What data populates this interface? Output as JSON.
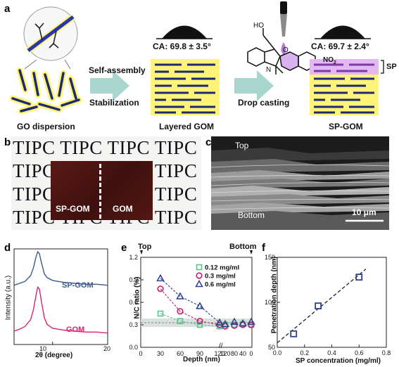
{
  "panels": {
    "a": "a",
    "b": "b",
    "c": "c",
    "d": "d",
    "e": "e",
    "f": "f"
  },
  "panel_a": {
    "labels": {
      "self_assembly": "Self-assembly",
      "stabilization": "Stabilization",
      "drop_casting": "Drop casting",
      "go_dispersion": "GO dispersion",
      "layered_gom": "Layered GOM",
      "sp_gom": "SP-GOM",
      "ca_gom": "CA: 69.8 ± 3.5°",
      "ca_spgom": "CA: 69.7 ± 2.4°",
      "sp": "SP",
      "ho": "HO",
      "n": "N",
      "o": "O",
      "no2": "NO",
      "no2_sub": "2"
    },
    "colors": {
      "sheet": "#1c2a6e",
      "glow": "#fff37a",
      "sp_layer": "#c084e0",
      "arrow": "#a9d5cf",
      "molecule_drop": "#b37ad8"
    }
  },
  "panel_b": {
    "tipc_rows": [
      "TIPC TIPC TIPC TIPC",
      "TIPC TIPC TIPC TIPC",
      "TIPC TIPC TIPC TIPC",
      "TIPC TIPC TIPC TIPC"
    ],
    "left_label": "SP-GOM",
    "right_label": "GOM"
  },
  "panel_c": {
    "top": "Top",
    "bottom": "Bottom",
    "scale": "10 μm"
  },
  "panel_d": {
    "ylabel": "Intensity (a.u.)",
    "xlabel": "2θ (degree)",
    "xticks": [
      "10",
      "20"
    ],
    "series": [
      {
        "name": "SP-GOM",
        "color": "#3b5b8c"
      },
      {
        "name": "GOM",
        "color": "#d6266f"
      }
    ]
  },
  "panel_e": {
    "top": "Top",
    "bottom": "Bottom",
    "ylabel": "N/C ratio (%)",
    "xlabel": "Depth (nm)",
    "yticks": [
      "0.0",
      "0.3",
      "0.6",
      "0.9",
      "1.2"
    ],
    "xticks_left": [
      "0",
      "30",
      "60",
      "90",
      "120"
    ],
    "xticks_right": [
      "120",
      "80",
      "40",
      "0"
    ],
    "legend": [
      {
        "name": "0.12 mg/ml",
        "color": "#57c48a",
        "marker": "square"
      },
      {
        "name": "0.3 mg/ml",
        "color": "#c41a6f",
        "marker": "circle"
      },
      {
        "name": "0.6 mg/ml",
        "color": "#2c3e8c",
        "marker": "triangle"
      }
    ]
  },
  "panel_f": {
    "ylabel": "Penetration depth (nm)",
    "xlabel": "SP concentration (mg/ml)",
    "yticks": [
      "50",
      "100",
      "150"
    ],
    "xticks": [
      "0.0",
      "0.2",
      "0.4",
      "0.6",
      "0.8"
    ]
  },
  "chart_data": [
    {
      "type": "line",
      "panel": "d",
      "xlabel": "2θ (degree)",
      "ylabel": "Intensity (a.u.)",
      "xlim": [
        3,
        20
      ],
      "series": [
        {
          "name": "SP-GOM",
          "x": [
            3,
            4,
            5,
            6,
            6.5,
            7,
            7.3,
            7.6,
            8,
            8.5,
            9,
            10,
            12,
            14,
            16,
            18,
            20
          ],
          "y": [
            0.62,
            0.64,
            0.66,
            0.72,
            0.8,
            0.92,
            0.97,
            0.95,
            0.85,
            0.74,
            0.7,
            0.67,
            0.65,
            0.64,
            0.63,
            0.63,
            0.62
          ]
        },
        {
          "name": "GOM",
          "x": [
            3,
            4,
            5,
            6,
            6.5,
            7,
            7.3,
            7.6,
            8,
            8.5,
            9,
            10,
            12,
            14,
            16,
            18,
            20
          ],
          "y": [
            0.14,
            0.16,
            0.19,
            0.26,
            0.36,
            0.52,
            0.6,
            0.58,
            0.44,
            0.28,
            0.21,
            0.17,
            0.15,
            0.14,
            0.13,
            0.13,
            0.12
          ]
        }
      ]
    },
    {
      "type": "scatter",
      "panel": "e",
      "xlabel": "Depth (nm)",
      "ylabel": "N/C ratio (%)",
      "ylim": [
        0,
        1.2
      ],
      "series": [
        {
          "name": "0.12 mg/ml",
          "x": [
            30,
            60,
            90,
            120,
            "120",
            "80",
            "40",
            "0"
          ],
          "y": [
            0.45,
            0.35,
            0.3,
            0.28,
            0.3,
            0.3,
            0.31,
            0.3
          ]
        },
        {
          "name": "0.3 mg/ml",
          "x": [
            30,
            60,
            90,
            120,
            "120",
            "80",
            "40",
            "0"
          ],
          "y": [
            0.78,
            0.48,
            0.35,
            0.3,
            0.28,
            0.29,
            0.3,
            0.3
          ]
        },
        {
          "name": "0.6 mg/ml",
          "x": [
            30,
            60,
            90,
            120,
            "120",
            "80",
            "40",
            "0"
          ],
          "y": [
            0.92,
            0.68,
            0.55,
            0.33,
            0.31,
            0.34,
            0.32,
            0.34
          ]
        }
      ]
    },
    {
      "type": "scatter",
      "panel": "f",
      "xlabel": "SP concentration (mg/ml)",
      "ylabel": "Penetration depth (nm)",
      "xlim": [
        0,
        0.8
      ],
      "ylim": [
        50,
        150
      ],
      "x": [
        0.12,
        0.3,
        0.6
      ],
      "y": [
        65,
        96,
        128
      ],
      "fit_line": {
        "x": [
          0.0,
          0.65
        ],
        "y": [
          55,
          137
        ]
      }
    }
  ]
}
